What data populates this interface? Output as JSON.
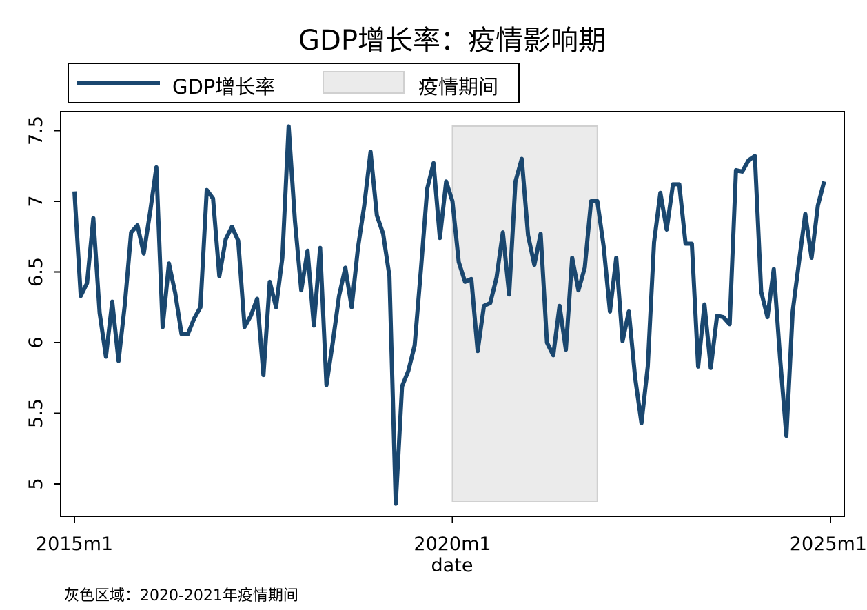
{
  "chart_data": {
    "type": "line",
    "title": "GDP增长率：疫情影响期",
    "xlabel": "date",
    "ylabel": "",
    "note": "灰色区域：2020-2021年疫情期间",
    "x_start": "2015m1",
    "x_ticks": [
      "2015m1",
      "2020m1",
      "2025m1"
    ],
    "y_ticks": [
      "5",
      "5.5",
      "6",
      "6.5",
      "7",
      "7.5"
    ],
    "ylim": [
      4.75,
      7.75
    ],
    "shaded_region": {
      "label": "疫情期间",
      "start": "2020m1",
      "end": "2021m12",
      "color": "#ebebeb"
    },
    "legend": {
      "placement": "top-left",
      "line_label": "GDP增长率",
      "shade_label": "疫情期间"
    },
    "series": [
      {
        "name": "GDP增长率",
        "color": "#1a476f",
        "values": [
          7.07,
          6.33,
          6.42,
          6.88,
          6.21,
          5.9,
          6.29,
          5.87,
          6.27,
          6.78,
          6.83,
          6.63,
          6.92,
          7.24,
          6.11,
          6.56,
          6.35,
          6.06,
          6.06,
          6.17,
          6.25,
          7.08,
          7.02,
          6.47,
          6.73,
          6.82,
          6.72,
          6.11,
          6.19,
          6.31,
          5.77,
          6.43,
          6.25,
          6.6,
          7.53,
          6.86,
          6.37,
          6.65,
          6.12,
          6.67,
          5.7,
          6.0,
          6.33,
          6.53,
          6.25,
          6.67,
          6.97,
          7.35,
          6.9,
          6.77,
          6.47,
          4.86,
          5.69,
          5.8,
          5.98,
          6.52,
          7.09,
          7.27,
          6.74,
          7.14,
          7.0,
          6.57,
          6.43,
          6.45,
          5.94,
          6.26,
          6.28,
          6.46,
          6.78,
          6.34,
          7.14,
          7.3,
          6.76,
          6.55,
          6.77,
          6.0,
          5.91,
          6.26,
          5.95,
          6.6,
          6.37,
          6.53,
          7.0,
          7.0,
          6.68,
          6.22,
          6.6,
          6.01,
          6.22,
          5.75,
          5.43,
          5.83,
          6.71,
          7.06,
          6.8,
          7.12,
          7.12,
          6.7,
          6.7,
          5.83,
          6.27,
          5.82,
          6.19,
          6.18,
          6.13,
          7.22,
          7.21,
          7.29,
          7.32,
          6.36,
          6.18,
          6.52,
          5.89,
          5.34,
          6.22,
          6.57,
          6.91,
          6.6,
          6.97,
          7.14
        ]
      }
    ]
  }
}
